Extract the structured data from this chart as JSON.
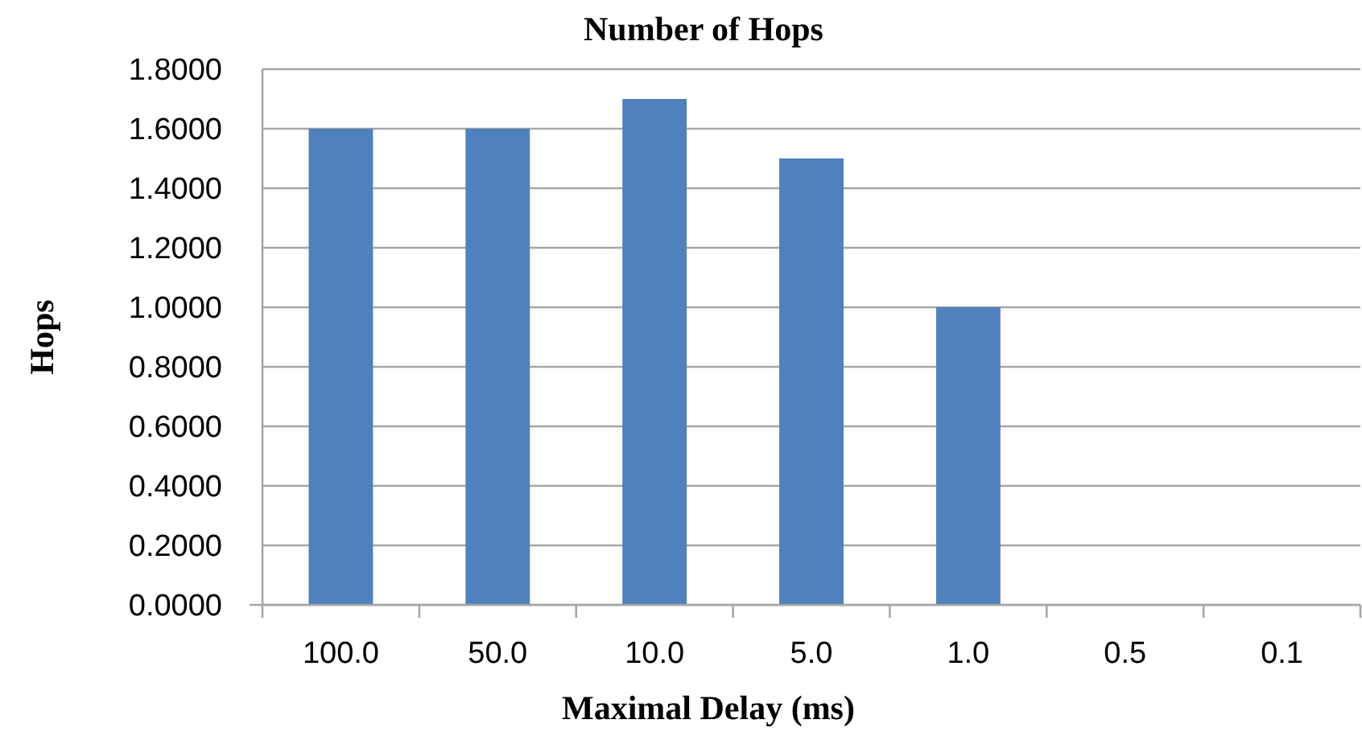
{
  "chart_data": {
    "type": "bar",
    "title": "Number of Hops",
    "xlabel": "Maximal Delay (ms)",
    "ylabel": "Hops",
    "categories": [
      "100.0",
      "50.0",
      "10.0",
      "5.0",
      "1.0",
      "0.5",
      "0.1"
    ],
    "values": [
      1.6,
      1.6,
      1.7,
      1.5,
      1.0,
      0,
      0
    ],
    "color": "#4f81bd",
    "ylim": [
      0,
      1.8
    ],
    "yticks": [
      {
        "value": 0,
        "label": "0.0000"
      },
      {
        "value": 0.2,
        "label": "0.2000"
      },
      {
        "value": 0.4,
        "label": "0.4000"
      },
      {
        "value": 0.6,
        "label": "0.6000"
      },
      {
        "value": 0.8,
        "label": "0.8000"
      },
      {
        "value": 1.0,
        "label": "1.0000"
      },
      {
        "value": 1.2,
        "label": "1.2000"
      },
      {
        "value": 1.4,
        "label": "1.4000"
      },
      {
        "value": 1.6,
        "label": "1.6000"
      },
      {
        "value": 1.8,
        "label": "1.8000"
      }
    ],
    "grid": "y"
  }
}
